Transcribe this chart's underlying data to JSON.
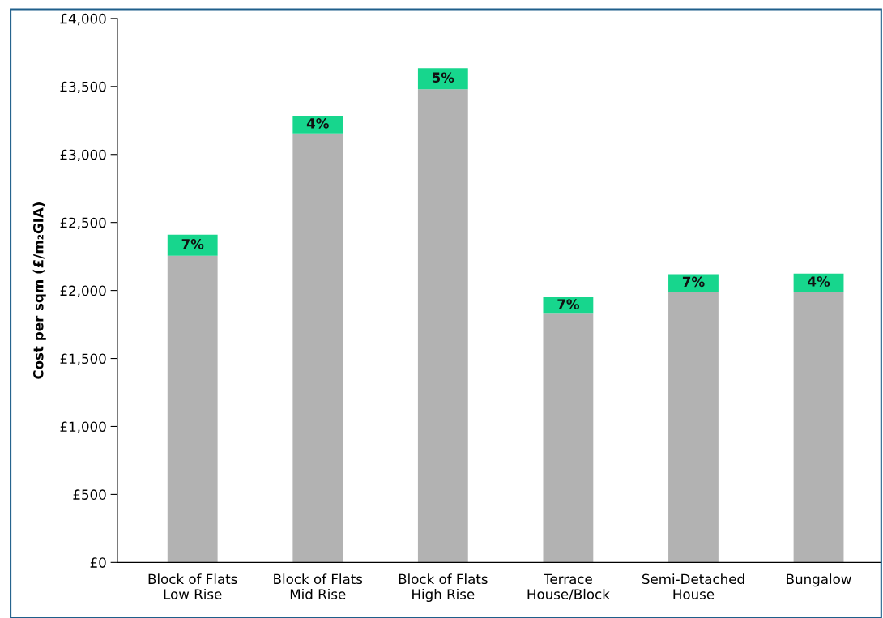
{
  "chart_data": {
    "type": "bar",
    "stacked": true,
    "ylabel": "Cost per sqm (£/m₂GIA)",
    "categories": [
      "Block of Flats\nLow Rise",
      "Block of Flats\nMid Rise",
      "Block of Flats\nHigh Rise",
      "Terrace\nHouse/Block",
      "Semi-Detached\nHouse",
      "Bungalow"
    ],
    "series": [
      {
        "color": "#b2b2b2",
        "values": [
          2255,
          3155,
          3480,
          1830,
          1990,
          1990
        ]
      },
      {
        "color": "#17d68d",
        "values": [
          155,
          130,
          155,
          120,
          130,
          135
        ]
      }
    ],
    "annotations": [
      "7%",
      "4%",
      "5%",
      "7%",
      "7%",
      "4%"
    ],
    "ylim": [
      0,
      4000
    ],
    "yticks": [
      {
        "value": 0,
        "label": "£0"
      },
      {
        "value": 500,
        "label": "£500"
      },
      {
        "value": 1000,
        "label": "£1,000"
      },
      {
        "value": 1500,
        "label": "£1,500"
      },
      {
        "value": 2000,
        "label": "£2,000"
      },
      {
        "value": 2500,
        "label": "£2,500"
      },
      {
        "value": 3000,
        "label": "£3,000"
      },
      {
        "value": 3500,
        "label": "£3,500"
      },
      {
        "value": 4000,
        "label": "£4,000"
      }
    ],
    "grid": false,
    "legend": false
  }
}
